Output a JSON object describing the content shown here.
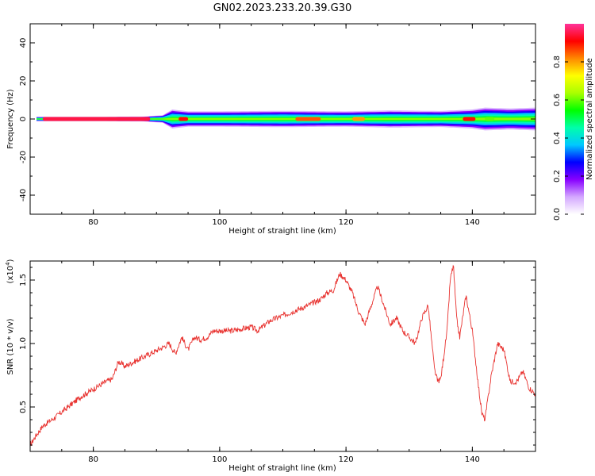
{
  "figure": {
    "title": "GN02.2023.233.20.39.G30"
  },
  "chart_data": [
    {
      "type": "heatmap",
      "panel": "spectrogram",
      "xlabel": "Height of straight line (km)",
      "ylabel": "Frequency (Hz)",
      "xlim": [
        70,
        150
      ],
      "ylim": [
        -50,
        50
      ],
      "x_ticks": [
        80,
        100,
        120,
        140
      ],
      "y_ticks": [
        -40,
        -20,
        0,
        20,
        40
      ],
      "x_tick_labels": [
        "80",
        "100",
        "120",
        "140"
      ],
      "y_tick_labels": [
        "-40",
        "-20",
        "0",
        "20",
        "40"
      ],
      "grid": false,
      "ridge_center_hz": 0,
      "band_halfwidth_hz": [
        {
          "x": 71,
          "hw": 1.2
        },
        {
          "x": 80,
          "hw": 1.2
        },
        {
          "x": 88,
          "hw": 1.3
        },
        {
          "x": 91,
          "hw": 2.0
        },
        {
          "x": 92.5,
          "hw": 5.0
        },
        {
          "x": 95,
          "hw": 4.0
        },
        {
          "x": 100,
          "hw": 4.0
        },
        {
          "x": 110,
          "hw": 4.3
        },
        {
          "x": 120,
          "hw": 4.0
        },
        {
          "x": 127,
          "hw": 4.5
        },
        {
          "x": 135,
          "hw": 4.2
        },
        {
          "x": 140,
          "hw": 5.0
        },
        {
          "x": 142,
          "hw": 6.0
        },
        {
          "x": 146,
          "hw": 5.5
        },
        {
          "x": 150,
          "hw": 6.0
        }
      ],
      "peak_segments": [
        {
          "x0": 72,
          "x1": 89,
          "amp": 0.95
        },
        {
          "x0": 93.5,
          "x1": 95,
          "amp": 0.9
        },
        {
          "x0": 112,
          "x1": 116,
          "amp": 0.85
        },
        {
          "x0": 121,
          "x1": 123,
          "amp": 0.8
        },
        {
          "x0": 138.5,
          "x1": 140.5,
          "amp": 0.9
        },
        {
          "x0": 142,
          "x1": 143.5,
          "amp": 0.6
        }
      ]
    },
    {
      "type": "colorbar",
      "label": "Normalized spectral amplitude",
      "range": [
        0,
        1
      ],
      "ticks": [
        0.0,
        0.2,
        0.4,
        0.6,
        0.8
      ],
      "tick_labels": [
        "0.0",
        "0.2",
        "0.4",
        "0.6",
        "0.8"
      ],
      "colormap": [
        "#ffffff",
        "#d4a8ff",
        "#8800ff",
        "#0000ff",
        "#00c8ff",
        "#00ffaa",
        "#00ff00",
        "#aaff00",
        "#ffff00",
        "#ff8800",
        "#ff0000",
        "#ff3399"
      ]
    },
    {
      "type": "line",
      "panel": "snr",
      "xlabel": "Height of straight line (km)",
      "ylabel": "SNR (10 * v/v)",
      "multiplier_label": "(x10",
      "multiplier_exp": "4",
      "multiplier_close": ")",
      "xlim": [
        70,
        150
      ],
      "ylim": [
        0.15,
        1.65
      ],
      "x_ticks": [
        80,
        100,
        120,
        140
      ],
      "y_ticks": [
        0.5,
        1.0,
        1.5
      ],
      "x_tick_labels": [
        "80",
        "100",
        "120",
        "140"
      ],
      "y_tick_labels": [
        "0.5",
        "1.0",
        "1.5"
      ],
      "series_color": "#e8322f",
      "series": [
        {
          "x": [
            70,
            71,
            72,
            74,
            76,
            78,
            80,
            82,
            83,
            84,
            85,
            87,
            89,
            91,
            92,
            93,
            94,
            95,
            96,
            97,
            98,
            99,
            100,
            102,
            104,
            105,
            106,
            108,
            110,
            112,
            114,
            116,
            117,
            118,
            119,
            120,
            121,
            122,
            123,
            124,
            125,
            126,
            127,
            128,
            129,
            130,
            131,
            132,
            133,
            134,
            134.5,
            135,
            136,
            136.5,
            137,
            137.5,
            138,
            139,
            140,
            141,
            141.5,
            142,
            143,
            144,
            145,
            146,
            147,
            148,
            149,
            150
          ],
          "y": [
            0.2,
            0.28,
            0.35,
            0.42,
            0.5,
            0.58,
            0.64,
            0.7,
            0.72,
            0.86,
            0.82,
            0.87,
            0.92,
            0.97,
            1.0,
            0.92,
            1.05,
            0.95,
            1.05,
            1.03,
            1.05,
            1.1,
            1.1,
            1.1,
            1.12,
            1.13,
            1.1,
            1.18,
            1.22,
            1.26,
            1.3,
            1.35,
            1.4,
            1.42,
            1.55,
            1.5,
            1.4,
            1.25,
            1.15,
            1.3,
            1.45,
            1.3,
            1.15,
            1.2,
            1.1,
            1.05,
            1.0,
            1.2,
            1.3,
            0.8,
            0.7,
            0.72,
            1.1,
            1.5,
            1.62,
            1.2,
            1.05,
            1.38,
            1.1,
            0.65,
            0.45,
            0.4,
            0.75,
            1.0,
            0.95,
            0.7,
            0.7,
            0.78,
            0.65,
            0.6
          ]
        }
      ]
    }
  ]
}
